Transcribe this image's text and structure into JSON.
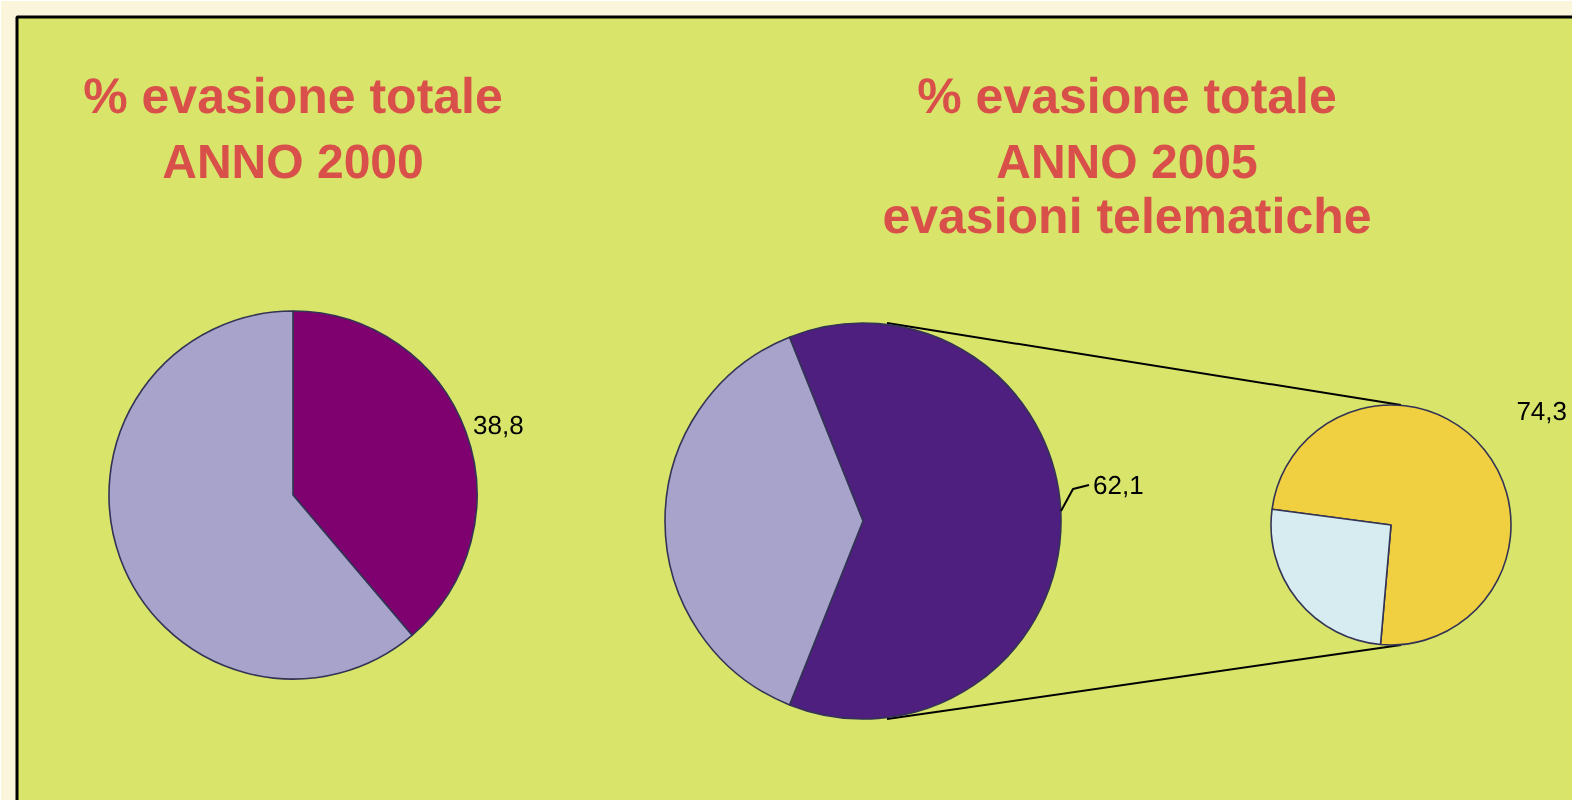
{
  "chart_data": [
    {
      "type": "pie",
      "title": "% evasione totale",
      "subtitle": "ANNO 2000",
      "categories": [
        null,
        null
      ],
      "values": [
        38.8,
        61.2
      ],
      "colors": [
        "#7f006f",
        "#a8a3cb"
      ],
      "value_labels": [
        "38,8",
        null
      ]
    },
    {
      "type": "pie",
      "title": "% evasione totale",
      "subtitle": "ANNO 2005",
      "categories": [
        null,
        null
      ],
      "values": [
        62.1,
        37.9
      ],
      "colors": [
        "#4f1f7f",
        "#a8a3cb"
      ],
      "value_labels": [
        "62,1",
        null
      ]
    },
    {
      "type": "pie",
      "title": "evasioni telematiche",
      "categories": [
        null,
        null
      ],
      "values": [
        74.3,
        25.7
      ],
      "colors": [
        "#f0d040",
        "#d6ecf0"
      ],
      "value_labels": [
        "74,3",
        null
      ]
    }
  ]
}
